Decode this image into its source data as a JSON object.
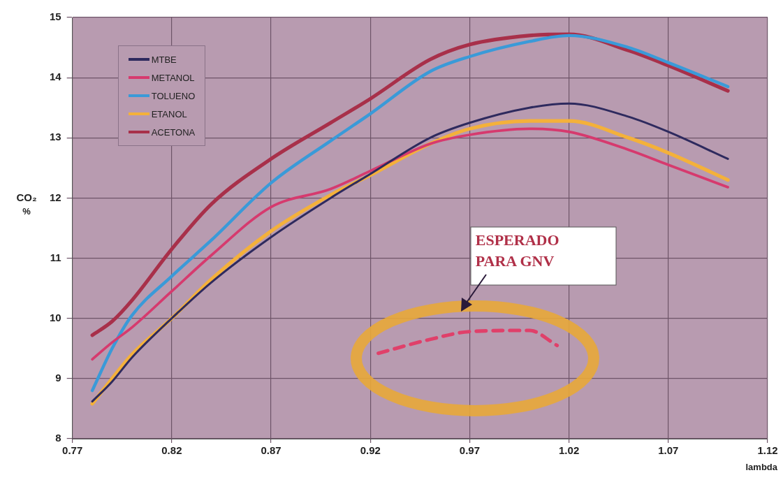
{
  "chart_data": {
    "type": "line",
    "xlabel": "lambda",
    "ylabel": "CO₂ %",
    "xlim": [
      0.77,
      1.12
    ],
    "xticks": [
      0.77,
      0.82,
      0.87,
      0.92,
      0.97,
      1.02,
      1.07,
      1.12
    ],
    "ylim": [
      8,
      15
    ],
    "yticks": [
      8,
      9,
      10,
      11,
      12,
      13,
      14,
      15
    ],
    "grid": true,
    "legend": "top left",
    "marker": "none",
    "line_style": "solid",
    "x": [
      0.78,
      0.79,
      0.8,
      0.82,
      0.84,
      0.87,
      0.9,
      0.92,
      0.95,
      0.97,
      1.0,
      1.02,
      1.05,
      1.07,
      1.1
    ],
    "series": [
      {
        "name": "MTBE",
        "color": "#2e2a5e",
        "values": [
          8.62,
          8.95,
          9.35,
          10.0,
          10.6,
          11.35,
          12.0,
          12.4,
          13.0,
          13.25,
          13.5,
          13.57,
          13.35,
          13.1,
          12.65
        ]
      },
      {
        "name": "METANOL",
        "color": "#d63a6e",
        "values": [
          9.32,
          9.6,
          9.85,
          10.45,
          11.05,
          11.85,
          12.15,
          12.45,
          12.9,
          13.05,
          13.15,
          13.1,
          12.8,
          12.55,
          12.18
        ]
      },
      {
        "name": "TOLUENO",
        "color": "#3a9ad8",
        "values": [
          8.8,
          9.5,
          10.05,
          10.7,
          11.3,
          12.25,
          12.95,
          13.4,
          14.1,
          14.35,
          14.6,
          14.7,
          14.5,
          14.25,
          13.85
        ]
      },
      {
        "name": "ETANOL",
        "color": "#f4b13a",
        "values": [
          8.58,
          9.0,
          9.4,
          10.0,
          10.65,
          11.45,
          12.05,
          12.38,
          12.9,
          13.15,
          13.28,
          13.28,
          13.0,
          12.75,
          12.3
        ]
      },
      {
        "name": "ACETONA",
        "color": "#a8304a",
        "values": [
          9.72,
          9.95,
          10.3,
          11.15,
          11.9,
          12.65,
          13.25,
          13.65,
          14.3,
          14.55,
          14.7,
          14.72,
          14.45,
          14.2,
          13.78
        ]
      },
      {
        "color": "#e0406a",
        "line_style": "dashed",
        "x": [
          0.924,
          0.95,
          0.97,
          1.0,
          1.014
        ],
        "values": [
          9.42,
          9.65,
          9.78,
          9.8,
          9.55
        ]
      }
    ],
    "annotations": [
      "ESPERADO PARA GNV"
    ]
  }
}
